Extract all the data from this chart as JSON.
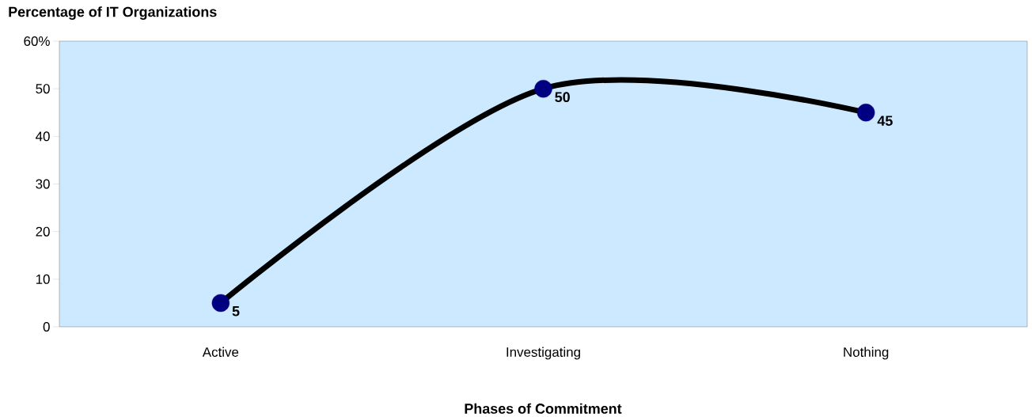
{
  "chart_data": {
    "type": "line",
    "ylabel": "Percentage of IT Organizations",
    "xlabel": "Phases of Commitment",
    "categories": [
      "Active",
      "Investigating",
      "Nothing"
    ],
    "series": [
      {
        "color": "#000000",
        "colors": [
          "#000080",
          "#000080",
          "#000080"
        ],
        "values": [
          5,
          50,
          45
        ]
      }
    ],
    "ylim": [
      0,
      60
    ],
    "yticks": [
      0,
      10,
      20,
      30,
      40,
      50,
      {
        "value": 60,
        "label": "60%"
      }
    ],
    "data_labels": true,
    "marker": "circle",
    "line_style": "solid"
  }
}
